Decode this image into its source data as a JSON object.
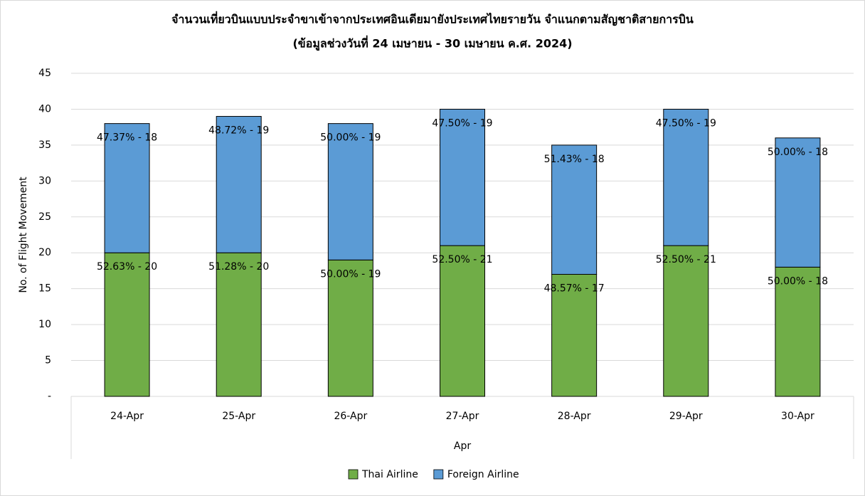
{
  "chart_data": {
    "type": "stacked_bar",
    "title": "จำนวนเที่ยวบินแบบประจำขาเข้าจากประเทศอินเดียมายังประเทศไทยรายวัน  จำแนกตามสัญชาติสายการบิน",
    "subtitle": "(ข้อมูลช่วงวันที่ 24 เมษายน - 30 เมษายน ค.ศ. 2024)",
    "y_label": "No. of Flight Movement",
    "x_label": "Apr",
    "categories": [
      "24-Apr",
      "25-Apr",
      "26-Apr",
      "27-Apr",
      "28-Apr",
      "29-Apr",
      "30-Apr"
    ],
    "series": [
      {
        "name": "Thai Airline",
        "color": "#70ad47",
        "values": [
          20,
          20,
          19,
          21,
          17,
          21,
          18
        ],
        "value_labels": [
          "52.63% - 20",
          "51.28% - 20",
          "50.00% - 19",
          "52.50% - 21",
          "48.57% - 17",
          "52.50% - 21",
          "50.00% - 18"
        ]
      },
      {
        "name": "Foreign Airline",
        "color": "#5b9bd5",
        "values": [
          18,
          19,
          19,
          19,
          18,
          19,
          18
        ],
        "value_labels": [
          "47.37% - 18",
          "48.72% - 19",
          "50.00% - 19",
          "47.50% - 19",
          "51.43% - 18",
          "47.50% - 19",
          "50.00% - 18"
        ]
      }
    ],
    "ylim": [
      0,
      45
    ],
    "yticks": [
      {
        "value": 0,
        "label": "-"
      },
      5,
      10,
      15,
      20,
      25,
      30,
      35,
      40,
      45
    ],
    "grid": true
  }
}
